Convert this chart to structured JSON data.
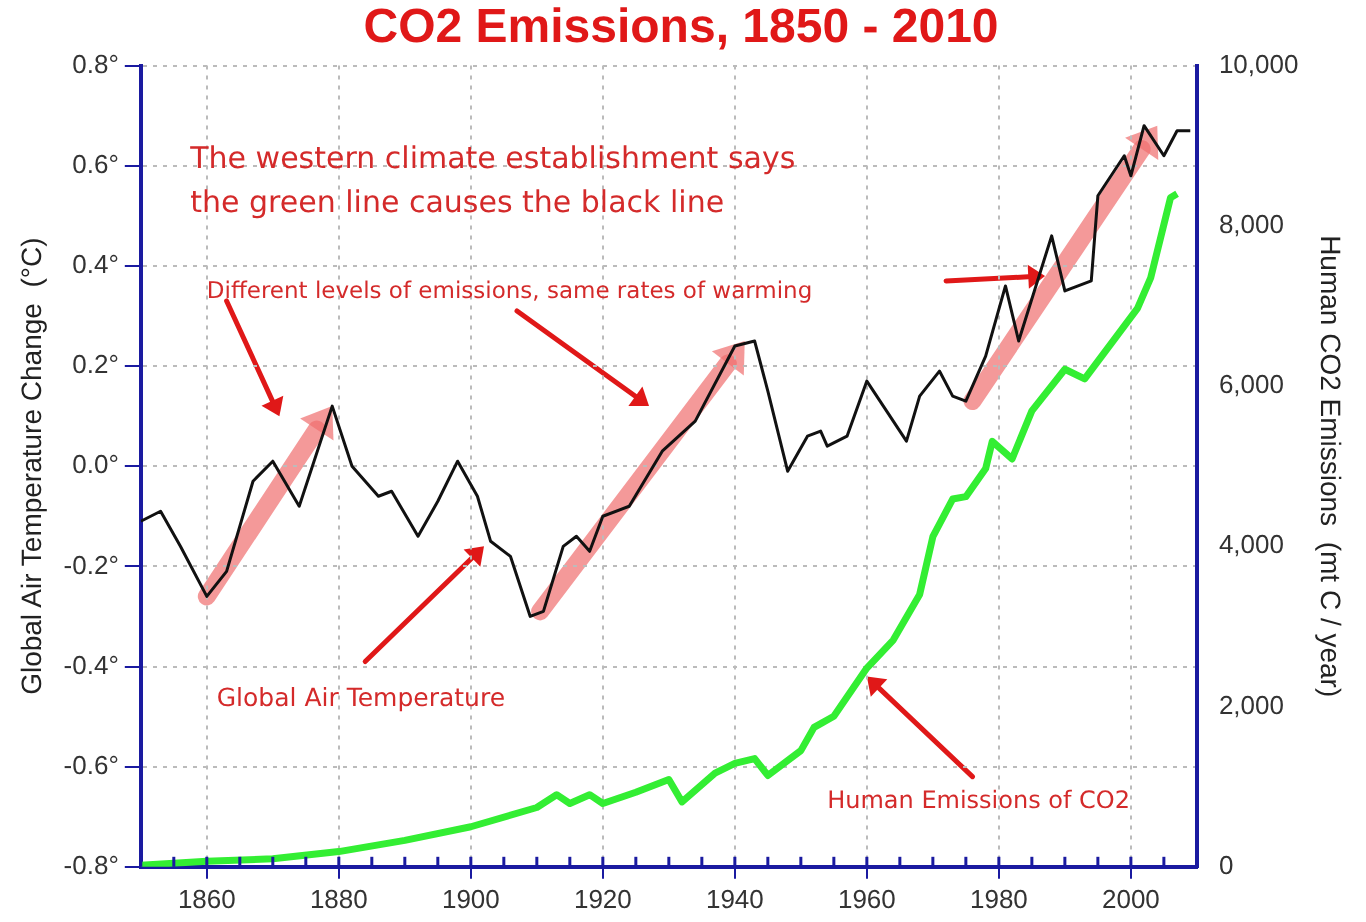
{
  "chart_data": {
    "type": "line",
    "title": "CO2 Emissions, 1850 - 2010",
    "ylabel": "Global Air Temperature Change  (°C)",
    "y2label": "Human CO2 Emissions  (mt C / year)",
    "annotations": [
      "The western climate establishment says the green line causes the black line",
      "Different levels of emissions, same rates of warming",
      "Global Air Temperature",
      "Human Emissions of CO2"
    ],
    "xlim": [
      1850,
      2010
    ],
    "xticks": [
      1860,
      1880,
      1900,
      1920,
      1940,
      1960,
      1980,
      2000
    ],
    "ylim": [
      -0.8,
      0.8
    ],
    "yticks": [
      {
        "value": -0.8,
        "label": "-0.8°"
      },
      {
        "value": -0.6,
        "label": "-0.6°"
      },
      {
        "value": -0.4,
        "label": "-0.4°"
      },
      {
        "value": -0.2,
        "label": "-0.2°"
      },
      {
        "value": 0,
        "label": "0.0°"
      },
      {
        "value": 0.2,
        "label": "0.2°"
      },
      {
        "value": 0.4,
        "label": "0.4°"
      },
      {
        "value": 0.6,
        "label": "0.6°"
      },
      {
        "value": 0.8,
        "label": "0.8°"
      }
    ],
    "y2lim": [
      0,
      10000
    ],
    "y2ticks": [
      0,
      {
        "value": 2000,
        "label": "2,000"
      },
      {
        "value": 4000,
        "label": "4,000"
      },
      {
        "value": 6000,
        "label": "6,000"
      },
      {
        "value": 8000,
        "label": "8,000"
      },
      {
        "value": 10000,
        "label": "10,000"
      }
    ],
    "grid": true,
    "legend": false,
    "marker": "none",
    "series": [
      {
        "color": "#111111",
        "x": [
          1850,
          1853,
          1856,
          1860,
          1863,
          1867,
          1870,
          1874,
          1879,
          1882,
          1886,
          1888,
          1892,
          1895,
          1898,
          1901,
          1903,
          1906,
          1909,
          1911,
          1914,
          1916,
          1918,
          1920,
          1924,
          1929,
          1934,
          1940,
          1943,
          1945,
          1948,
          1951,
          1953,
          1954,
          1957,
          1960,
          1963,
          1966,
          1968,
          1971,
          1973,
          1975,
          1978,
          1981,
          1983,
          1988,
          1990,
          1994,
          1995,
          1999,
          2000,
          2002,
          2005,
          2007,
          2009
        ],
        "values": [
          -0.11,
          -0.09,
          -0.16,
          -0.26,
          -0.21,
          -0.03,
          0.01,
          -0.08,
          0.12,
          0,
          -0.06,
          -0.05,
          -0.14,
          -0.07,
          0.01,
          -0.06,
          -0.15,
          -0.18,
          -0.3,
          -0.29,
          -0.16,
          -0.14,
          -0.17,
          -0.1,
          -0.08,
          0.03,
          0.09,
          0.24,
          0.25,
          0.15,
          -0.01,
          0.06,
          0.07,
          0.04,
          0.06,
          0.17,
          0.11,
          0.05,
          0.14,
          0.19,
          0.14,
          0.13,
          0.22,
          0.36,
          0.25,
          0.46,
          0.35,
          0.37,
          0.54,
          0.62,
          0.58,
          0.68,
          0.62,
          0.67,
          0.67
        ]
      },
      {
        "color": "#33ee33",
        "axis": "y2",
        "x": [
          1850,
          1860,
          1870,
          1880,
          1890,
          1900,
          1910,
          1913,
          1915,
          1918,
          1920,
          1925,
          1930,
          1932,
          1937,
          1940,
          1943,
          1945,
          1950,
          1952,
          1955,
          1960,
          1964,
          1968,
          1970,
          1973,
          1975,
          1978,
          1979,
          1982,
          1985,
          1990,
          1993,
          1998,
          2001,
          2003,
          2006,
          2007
        ],
        "values": [
          20,
          70,
          100,
          190,
          330,
          500,
          740,
          900,
          790,
          900,
          790,
          930,
          1090,
          810,
          1170,
          1290,
          1350,
          1140,
          1450,
          1740,
          1880,
          2480,
          2830,
          3400,
          4120,
          4590,
          4620,
          4970,
          5310,
          5090,
          5690,
          6210,
          6090,
          6640,
          6970,
          7350,
          8350,
          8400
        ]
      }
    ]
  }
}
